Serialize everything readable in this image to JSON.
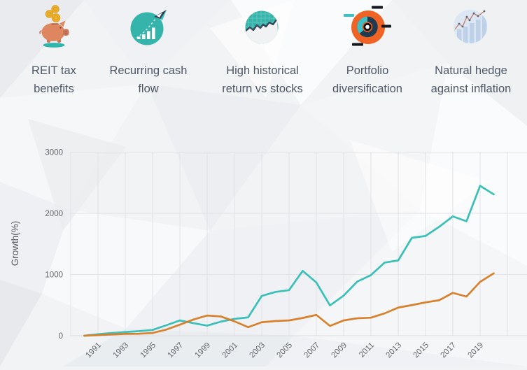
{
  "benefits": {
    "items": [
      {
        "icon": "piggy-bank-coins-icon",
        "label": "REIT tax benefits"
      },
      {
        "icon": "bar-growth-paper-plane-icon",
        "label": "Recurring cash flow"
      },
      {
        "icon": "stock-area-chart-icon",
        "label": "High historical return vs stocks"
      },
      {
        "icon": "donut-chart-icon",
        "label": "Portfolio diversification"
      },
      {
        "icon": "bars-trend-line-icon",
        "label": "Natural hedge against inflation"
      }
    ]
  },
  "chart_data": {
    "type": "line",
    "title": "",
    "xlabel": "",
    "ylabel": "Growth(%)",
    "ylim": [
      0,
      3000
    ],
    "yticks": [
      0,
      1000,
      2000,
      3000
    ],
    "xticks": [
      1991,
      1993,
      1995,
      1997,
      1999,
      2001,
      2003,
      2005,
      2007,
      2009,
      2011,
      2013,
      2015,
      2017,
      2019
    ],
    "grid": true,
    "legend": "none",
    "x": [
      1990,
      1991,
      1992,
      1993,
      1994,
      1995,
      1996,
      1997,
      1998,
      1999,
      2000,
      2001,
      2002,
      2003,
      2004,
      2005,
      2006,
      2007,
      2008,
      2009,
      2010,
      2011,
      2012,
      2013,
      2014,
      2015,
      2016,
      2017,
      2018,
      2019,
      2020
    ],
    "series": [
      {
        "name": "teal",
        "color": "#3ac0b8",
        "values": [
          0,
          25,
          45,
          60,
          75,
          95,
          170,
          250,
          205,
          165,
          230,
          275,
          300,
          650,
          715,
          745,
          1060,
          870,
          495,
          655,
          885,
          990,
          1195,
          1230,
          1600,
          1630,
          1780,
          1950,
          1870,
          2450,
          2310
        ]
      },
      {
        "name": "orange",
        "color": "#d8812d",
        "values": [
          0,
          10,
          20,
          30,
          32,
          45,
          100,
          180,
          265,
          330,
          315,
          235,
          140,
          220,
          240,
          250,
          290,
          340,
          160,
          250,
          285,
          295,
          365,
          460,
          500,
          545,
          580,
          700,
          640,
          880,
          1020
        ]
      }
    ]
  },
  "colors": {
    "accent_teal": "#35b4ac",
    "accent_orange": "#ef6424",
    "line_teal": "#3ac0b8",
    "line_orange": "#d8812d",
    "text_dark": "#4d5766",
    "tick_gray": "#63666c",
    "grid_gray": "#e2e3e7",
    "pale_blue": "#dce7f3"
  }
}
